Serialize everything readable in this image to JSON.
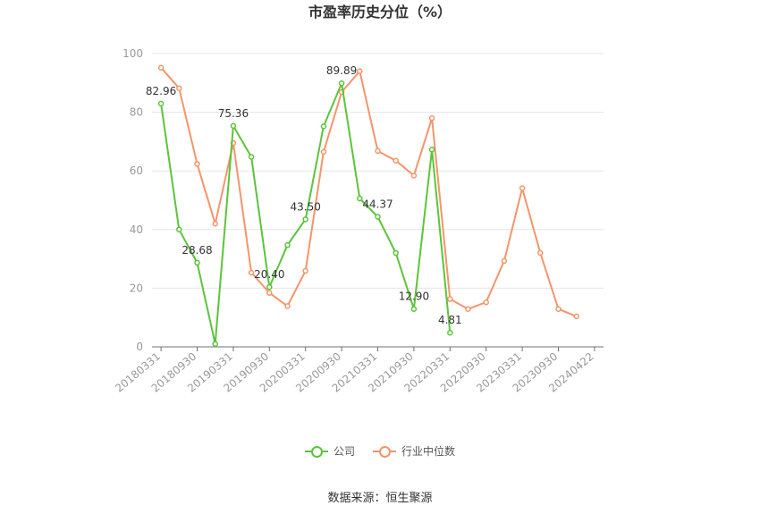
{
  "chart_data": {
    "type": "line",
    "title": "市盈率历史分位（%）",
    "ylim": [
      0,
      100
    ],
    "yticks": [
      0,
      20,
      40,
      60,
      80,
      100
    ],
    "x_tick_labels": [
      "20180331",
      "20180930",
      "20190331",
      "20190930",
      "20200331",
      "20200930",
      "20210331",
      "20210930",
      "20220331",
      "20220930",
      "20230331",
      "20230930",
      "20240422"
    ],
    "x": [
      "20180331",
      "20180630",
      "20180930",
      "20181231",
      "20190331",
      "20190630",
      "20190930",
      "20191231",
      "20200331",
      "20200630",
      "20200930",
      "20201231",
      "20210331",
      "20210630",
      "20210930",
      "20211231",
      "20220331",
      "20220630",
      "20220930",
      "20221231",
      "20230331",
      "20230630",
      "20230930",
      "20231231",
      "20240422"
    ],
    "series": [
      {
        "name": "公司",
        "color": "#5cc43a",
        "values": [
          82.96,
          40.0,
          28.68,
          1.0,
          75.36,
          64.8,
          20.4,
          34.7,
          43.5,
          75.2,
          89.89,
          50.6,
          44.37,
          32.0,
          12.9,
          67.3,
          4.81,
          null,
          null,
          null,
          null,
          null,
          null,
          null,
          null
        ],
        "labels": {
          "0": "82.96",
          "2": "28.68",
          "4": "75.36",
          "6": "20.40",
          "8": "43.50",
          "10": "89.89",
          "12": "44.37",
          "14": "12.90",
          "16": "4.81"
        }
      },
      {
        "name": "行业中位数",
        "color": "#f4956a",
        "values": [
          95.2,
          88.2,
          62.4,
          42.0,
          69.5,
          25.3,
          18.4,
          13.9,
          25.9,
          66.5,
          86.9,
          94.0,
          66.8,
          63.5,
          58.4,
          78.0,
          16.3,
          12.9,
          15.2,
          29.3,
          54.1,
          32.0,
          12.9,
          10.4,
          null
        ]
      }
    ],
    "grid": true,
    "legend_position": "bottom"
  },
  "source": "数据来源：恒生聚源"
}
